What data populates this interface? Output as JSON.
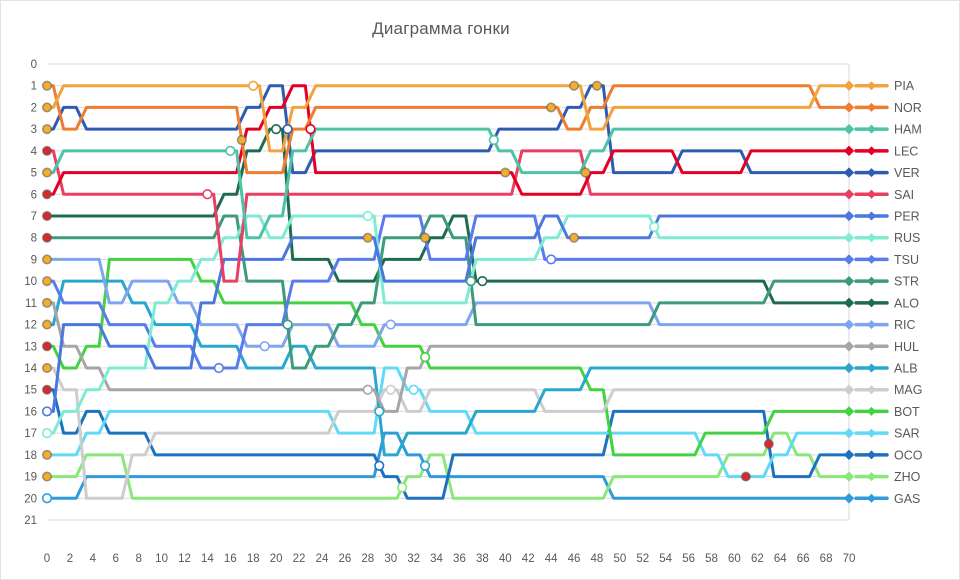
{
  "title": "Диаграмма гонки",
  "colors": {
    "grid": "#d9d9d9",
    "axis_text": "#595959",
    "legend_text": "#595959",
    "background": "#ffffff"
  },
  "chart_data": {
    "type": "line",
    "title": "Диаграмма гонки",
    "xlabel": "",
    "ylabel": "",
    "x_range": [
      0,
      70
    ],
    "y_range": [
      0,
      21
    ],
    "x_tick_step": 2,
    "y_tick_step": 1,
    "grid": "horizontal",
    "legend_position": "right",
    "laps": [
      0,
      2,
      4,
      6,
      8,
      10,
      12,
      14,
      16,
      18,
      20,
      22,
      24,
      26,
      28,
      30,
      32,
      34,
      36,
      38,
      40,
      42,
      44,
      46,
      48,
      50,
      52,
      54,
      56,
      58,
      60,
      62,
      64,
      66,
      68,
      70
    ],
    "tyre_colors": {
      "soft": "#d7292f",
      "medium": "#f2ae30",
      "hard": "#ffffff"
    },
    "series": [
      {
        "name": "PIA",
        "color": "#f2a33c",
        "tyre_start": "medium",
        "finish_position": 1,
        "positions": [
          2,
          1,
          1,
          1,
          1,
          1,
          1,
          1,
          1,
          1,
          4,
          2,
          1,
          1,
          1,
          1,
          1,
          1,
          1,
          1,
          1,
          1,
          1,
          1,
          3,
          2,
          2,
          2,
          2,
          2,
          2,
          2,
          2,
          2,
          1,
          1
        ]
      },
      {
        "name": "NOR",
        "color": "#ee7d30",
        "tyre_start": "medium",
        "finish_position": 2,
        "positions": [
          1,
          3,
          2,
          2,
          2,
          2,
          2,
          2,
          2,
          5,
          5,
          3,
          2,
          2,
          2,
          2,
          2,
          2,
          2,
          2,
          2,
          2,
          2,
          3,
          2,
          1,
          1,
          1,
          1,
          1,
          1,
          1,
          1,
          1,
          2,
          2
        ]
      },
      {
        "name": "HAM",
        "color": "#4ec3a5",
        "tyre_start": "medium",
        "finish_position": 3,
        "positions": [
          5,
          4,
          4,
          4,
          4,
          4,
          4,
          4,
          4,
          8,
          7,
          4,
          3,
          3,
          3,
          3,
          3,
          3,
          3,
          3,
          4,
          5,
          5,
          5,
          4,
          3,
          3,
          3,
          3,
          3,
          3,
          3,
          3,
          3,
          3,
          3
        ]
      },
      {
        "name": "LEC",
        "color": "#e30022",
        "tyre_start": "soft",
        "finish_position": 4,
        "positions": [
          6,
          5,
          5,
          5,
          5,
          5,
          5,
          5,
          5,
          3,
          2,
          1,
          5,
          5,
          5,
          5,
          5,
          5,
          5,
          5,
          5,
          6,
          6,
          6,
          5,
          4,
          4,
          4,
          5,
          5,
          5,
          4,
          4,
          4,
          4,
          4
        ]
      },
      {
        "name": "VER",
        "color": "#2f5cb0",
        "tyre_start": "medium",
        "finish_position": 5,
        "positions": [
          3,
          2,
          3,
          3,
          3,
          3,
          3,
          3,
          3,
          2,
          1,
          5,
          4,
          4,
          4,
          4,
          4,
          4,
          4,
          4,
          3,
          3,
          3,
          2,
          1,
          5,
          5,
          5,
          4,
          4,
          4,
          5,
          5,
          5,
          5,
          5
        ]
      },
      {
        "name": "SAI",
        "color": "#ea3e63",
        "tyre_start": "soft",
        "finish_position": 6,
        "positions": [
          4,
          6,
          6,
          6,
          6,
          6,
          6,
          6,
          10,
          6,
          6,
          6,
          6,
          6,
          6,
          6,
          6,
          6,
          6,
          6,
          6,
          4,
          4,
          4,
          6,
          6,
          6,
          6,
          6,
          6,
          6,
          6,
          6,
          6,
          6,
          6
        ]
      },
      {
        "name": "PER",
        "color": "#4a78dd",
        "tyre_start": "hard",
        "finish_position": 7,
        "positions": [
          16,
          12,
          12,
          13,
          13,
          14,
          14,
          11,
          9,
          9,
          9,
          8,
          8,
          8,
          8,
          10,
          10,
          10,
          10,
          8,
          8,
          8,
          7,
          8,
          8,
          8,
          8,
          7,
          7,
          7,
          7,
          7,
          7,
          7,
          7,
          7
        ]
      },
      {
        "name": "RUS",
        "color": "#7febd3",
        "tyre_start": "hard",
        "finish_position": 8,
        "positions": [
          17,
          16,
          15,
          14,
          14,
          11,
          10,
          9,
          8,
          7,
          8,
          7,
          7,
          7,
          7,
          11,
          11,
          11,
          11,
          9,
          9,
          9,
          8,
          7,
          7,
          7,
          7,
          8,
          8,
          8,
          8,
          8,
          8,
          8,
          8,
          8
        ]
      },
      {
        "name": "TSU",
        "color": "#5a7bea",
        "tyre_start": "medium",
        "finish_position": 9,
        "positions": [
          10,
          11,
          11,
          12,
          12,
          13,
          13,
          14,
          14,
          12,
          12,
          10,
          10,
          9,
          9,
          7,
          7,
          9,
          9,
          7,
          7,
          7,
          9,
          9,
          9,
          9,
          9,
          9,
          9,
          9,
          9,
          9,
          9,
          9,
          9,
          9
        ]
      },
      {
        "name": "STR",
        "color": "#3d9b7b",
        "tyre_start": "soft",
        "finish_position": 10,
        "positions": [
          8,
          8,
          8,
          8,
          8,
          8,
          8,
          8,
          7,
          10,
          10,
          14,
          13,
          12,
          11,
          8,
          8,
          7,
          8,
          12,
          12,
          12,
          12,
          12,
          12,
          12,
          12,
          11,
          11,
          11,
          11,
          11,
          10,
          10,
          10,
          10
        ]
      },
      {
        "name": "ALO",
        "color": "#1e6b52",
        "tyre_start": "soft",
        "finish_position": 11,
        "positions": [
          7,
          7,
          7,
          7,
          7,
          7,
          7,
          7,
          6,
          4,
          3,
          9,
          9,
          10,
          10,
          9,
          9,
          8,
          7,
          10,
          10,
          10,
          10,
          10,
          10,
          10,
          10,
          10,
          10,
          10,
          10,
          10,
          11,
          11,
          11,
          11
        ]
      },
      {
        "name": "RIC",
        "color": "#7fa5f0",
        "tyre_start": "medium",
        "finish_position": 12,
        "positions": [
          9,
          9,
          9,
          11,
          10,
          10,
          11,
          12,
          12,
          13,
          13,
          12,
          12,
          13,
          13,
          12,
          12,
          12,
          12,
          11,
          11,
          11,
          11,
          11,
          11,
          11,
          11,
          12,
          12,
          12,
          12,
          12,
          12,
          12,
          12,
          12
        ]
      },
      {
        "name": "HUL",
        "color": "#a6a6a6",
        "tyre_start": "medium",
        "finish_position": 13,
        "positions": [
          11,
          13,
          14,
          15,
          15,
          15,
          15,
          15,
          15,
          15,
          15,
          15,
          15,
          15,
          15,
          16,
          14,
          13,
          13,
          13,
          13,
          13,
          13,
          13,
          13,
          13,
          13,
          13,
          13,
          13,
          13,
          13,
          13,
          13,
          13,
          13
        ]
      },
      {
        "name": "ALB",
        "color": "#29a7ce",
        "tyre_start": "medium",
        "finish_position": 14,
        "positions": [
          12,
          10,
          10,
          10,
          11,
          12,
          12,
          13,
          13,
          14,
          14,
          13,
          14,
          14,
          14,
          18,
          17,
          17,
          17,
          16,
          16,
          16,
          15,
          15,
          14,
          14,
          14,
          14,
          14,
          14,
          14,
          14,
          14,
          14,
          14,
          14
        ]
      },
      {
        "name": "MAG",
        "color": "#cdcdcd",
        "tyre_start": "medium",
        "finish_position": 15,
        "positions": [
          14,
          15,
          20,
          20,
          18,
          17,
          17,
          17,
          17,
          17,
          17,
          17,
          17,
          16,
          16,
          15,
          16,
          15,
          15,
          15,
          15,
          15,
          16,
          16,
          16,
          15,
          15,
          15,
          15,
          15,
          15,
          15,
          15,
          15,
          15,
          15
        ]
      },
      {
        "name": "BOT",
        "color": "#43d243",
        "tyre_start": "soft",
        "finish_position": 16,
        "positions": [
          13,
          14,
          13,
          9,
          9,
          9,
          9,
          10,
          11,
          11,
          11,
          11,
          11,
          11,
          12,
          13,
          13,
          14,
          14,
          14,
          14,
          14,
          14,
          14,
          15,
          18,
          18,
          18,
          18,
          17,
          17,
          17,
          16,
          16,
          16,
          16
        ]
      },
      {
        "name": "SAR",
        "color": "#62d9f5",
        "tyre_start": "medium",
        "finish_position": 17,
        "positions": [
          18,
          18,
          17,
          16,
          16,
          16,
          16,
          16,
          16,
          16,
          16,
          16,
          16,
          17,
          17,
          14,
          15,
          16,
          16,
          17,
          17,
          17,
          17,
          17,
          17,
          17,
          17,
          17,
          17,
          18,
          19,
          19,
          18,
          17,
          17,
          17
        ]
      },
      {
        "name": "OCO",
        "color": "#1d71be",
        "tyre_start": "soft",
        "finish_position": 18,
        "positions": [
          15,
          17,
          16,
          17,
          17,
          18,
          18,
          18,
          18,
          18,
          18,
          18,
          18,
          18,
          18,
          19,
          20,
          20,
          18,
          18,
          18,
          18,
          18,
          18,
          18,
          16,
          16,
          16,
          16,
          16,
          16,
          16,
          19,
          19,
          18,
          18
        ]
      },
      {
        "name": "ZHO",
        "color": "#8ae87b",
        "tyre_start": "medium",
        "finish_position": 19,
        "positions": [
          19,
          19,
          18,
          18,
          20,
          20,
          20,
          20,
          20,
          20,
          20,
          20,
          20,
          20,
          20,
          20,
          19,
          18,
          20,
          20,
          20,
          20,
          20,
          20,
          20,
          19,
          19,
          19,
          19,
          19,
          18,
          18,
          17,
          18,
          19,
          19
        ]
      },
      {
        "name": "GAS",
        "color": "#2e9cdc",
        "tyre_start": "hard",
        "finish_position": 20,
        "positions": [
          20,
          20,
          19,
          19,
          19,
          19,
          19,
          19,
          19,
          19,
          19,
          19,
          19,
          19,
          19,
          17,
          18,
          19,
          19,
          19,
          19,
          19,
          19,
          19,
          19,
          20,
          20,
          20,
          20,
          20,
          20,
          20,
          20,
          20,
          20,
          20
        ]
      }
    ],
    "pit_stops": [
      {
        "driver": "SAI",
        "lap": 14,
        "tyre": "hard"
      },
      {
        "driver": "TSU",
        "lap": 15,
        "tyre": "hard"
      },
      {
        "driver": "HAM",
        "lap": 16,
        "tyre": "hard"
      },
      {
        "driver": "NOR",
        "lap": 17,
        "tyre": "medium"
      },
      {
        "driver": "PIA",
        "lap": 18,
        "tyre": "hard"
      },
      {
        "driver": "RIC",
        "lap": 19,
        "tyre": "hard"
      },
      {
        "driver": "ALO",
        "lap": 20,
        "tyre": "hard"
      },
      {
        "driver": "STR",
        "lap": 21,
        "tyre": "hard"
      },
      {
        "driver": "VER",
        "lap": 21,
        "tyre": "hard"
      },
      {
        "driver": "LEC",
        "lap": 23,
        "tyre": "hard"
      },
      {
        "driver": "PER",
        "lap": 28,
        "tyre": "medium"
      },
      {
        "driver": "RUS",
        "lap": 28,
        "tyre": "hard"
      },
      {
        "driver": "HUL",
        "lap": 28,
        "tyre": "hard"
      },
      {
        "driver": "ALB",
        "lap": 29,
        "tyre": "hard"
      },
      {
        "driver": "OCO",
        "lap": 29,
        "tyre": "hard"
      },
      {
        "driver": "MAG",
        "lap": 30,
        "tyre": "hard"
      },
      {
        "driver": "RIC",
        "lap": 30,
        "tyre": "hard"
      },
      {
        "driver": "ZHO",
        "lap": 31,
        "tyre": "hard"
      },
      {
        "driver": "SAR",
        "lap": 32,
        "tyre": "hard"
      },
      {
        "driver": "BOT",
        "lap": 33,
        "tyre": "hard"
      },
      {
        "driver": "GAS",
        "lap": 33,
        "tyre": "hard"
      },
      {
        "driver": "TSU",
        "lap": 33,
        "tyre": "medium"
      },
      {
        "driver": "STR",
        "lap": 37,
        "tyre": "hard"
      },
      {
        "driver": "ALO",
        "lap": 38,
        "tyre": "hard"
      },
      {
        "driver": "HAM",
        "lap": 39,
        "tyre": "hard"
      },
      {
        "driver": "LEC",
        "lap": 40,
        "tyre": "medium"
      },
      {
        "driver": "NOR",
        "lap": 44,
        "tyre": "medium"
      },
      {
        "driver": "TSU",
        "lap": 44,
        "tyre": "hard"
      },
      {
        "driver": "PIA",
        "lap": 46,
        "tyre": "medium"
      },
      {
        "driver": "PER",
        "lap": 46,
        "tyre": "medium"
      },
      {
        "driver": "SAI",
        "lap": 47,
        "tyre": "medium"
      },
      {
        "driver": "VER",
        "lap": 48,
        "tyre": "medium"
      },
      {
        "driver": "RUS",
        "lap": 53,
        "tyre": "hard"
      },
      {
        "driver": "SAR",
        "lap": 61,
        "tyre": "soft"
      },
      {
        "driver": "OCO",
        "lap": 63,
        "tyre": "soft"
      }
    ]
  }
}
